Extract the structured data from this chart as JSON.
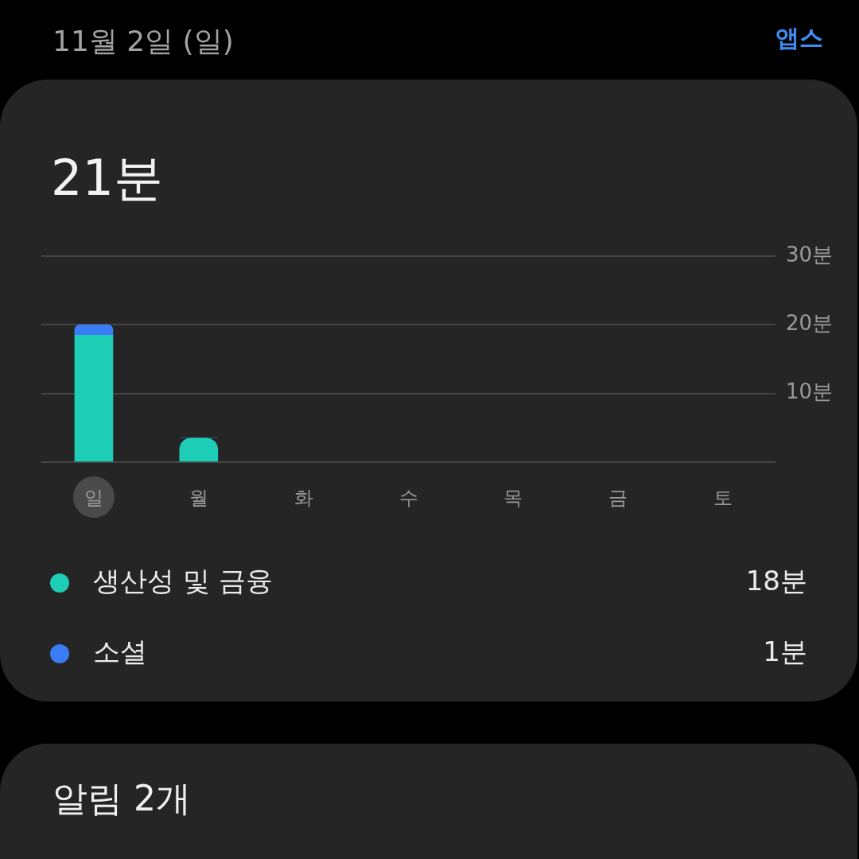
{
  "chart_data": {
    "type": "bar",
    "title": "21분",
    "categories": [
      "일",
      "월",
      "화",
      "수",
      "목",
      "금",
      "토"
    ],
    "series": [
      {
        "name": "생산성 및 금융",
        "color": "#1ecdb5",
        "values": [
          18.5,
          3.5,
          null,
          null,
          null,
          null,
          null
        ]
      },
      {
        "name": "소셜",
        "color": "#3b7cf6",
        "values": [
          1.5,
          0,
          null,
          null,
          null,
          null,
          null
        ]
      }
    ],
    "stacked": true,
    "ylim": [
      0,
      30
    ],
    "yticks": [
      {
        "value": 0,
        "label": null
      },
      {
        "value": 10,
        "label": "10분"
      },
      {
        "value": 20,
        "label": "20분"
      },
      {
        "value": 30,
        "label": "30분"
      }
    ],
    "grid": "y",
    "legend": "bottom",
    "annotations": [
      "11월 2일 (일)",
      "앱스",
      "18분",
      "1분",
      "알림 2개"
    ]
  }
}
